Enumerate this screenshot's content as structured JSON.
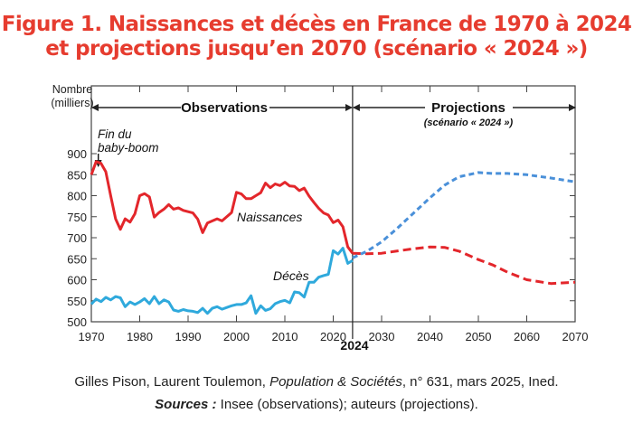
{
  "title": {
    "line1": "Figure 1. Naissances et décès en France de 1970 à 2024",
    "line2": "et projections jusqu’en 2070 (scénario « 2024 »)"
  },
  "footer": {
    "credit_authors": "Gilles Pison, Laurent Toulemon, ",
    "credit_journal": "Population & Sociétés",
    "credit_rest": ", n° 631, mars 2025, Ined.",
    "sources_label": "Sources :",
    "sources_text": " Insee (observations); auteurs (projections)."
  },
  "chart_data": {
    "type": "line",
    "ylabel": "Nombre\n(milliers)",
    "ylabel_lines": [
      "Nombre",
      "(milliers)"
    ],
    "xlim": [
      1970,
      2070
    ],
    "ylim": [
      500,
      900
    ],
    "xticks": [
      1970,
      1980,
      1990,
      2000,
      2010,
      2020,
      2030,
      2040,
      2050,
      2060,
      2070
    ],
    "yticks": [
      500,
      550,
      600,
      650,
      700,
      750,
      800,
      850,
      900
    ],
    "divider_year": 2024,
    "divider_label": "2024",
    "periods": {
      "observations": "Observations",
      "projections": "Projections",
      "projections_sub": "(scénario « 2024 »)"
    },
    "annotation": {
      "text_lines": [
        "Fin du",
        "baby-boom"
      ],
      "year": 1972
    },
    "colors": {
      "births": "#e3262b",
      "deaths": "#2fa9dc",
      "deaths_projection": "#4a90d9",
      "title": "#e63c2f"
    },
    "series": [
      {
        "name": "Naissances",
        "style": "solid",
        "color": "#e3262b",
        "x": [
          1970,
          1971,
          1972,
          1973,
          1974,
          1975,
          1976,
          1977,
          1978,
          1979,
          1980,
          1981,
          1982,
          1983,
          1984,
          1985,
          1986,
          1987,
          1988,
          1989,
          1990,
          1991,
          1992,
          1993,
          1994,
          1995,
          1996,
          1997,
          1998,
          1999,
          2000,
          2001,
          2002,
          2003,
          2004,
          2005,
          2006,
          2007,
          2008,
          2009,
          2010,
          2011,
          2012,
          2013,
          2014,
          2015,
          2016,
          2017,
          2018,
          2019,
          2020,
          2021,
          2022,
          2023,
          2024
        ],
        "y": [
          850,
          881,
          877,
          857,
          800,
          745,
          720,
          745,
          737,
          757,
          800,
          805,
          797,
          749,
          760,
          768,
          779,
          768,
          771,
          765,
          762,
          759,
          744,
          712,
          735,
          740,
          745,
          740,
          750,
          760,
          808,
          804,
          793,
          793,
          800,
          807,
          830,
          819,
          828,
          824,
          832,
          823,
          822,
          812,
          818,
          799,
          784,
          770,
          759,
          754,
          736,
          742,
          726,
          678,
          663
        ]
      },
      {
        "name": "Décès",
        "style": "solid",
        "color": "#2fa9dc",
        "x": [
          1970,
          1971,
          1972,
          1973,
          1974,
          1975,
          1976,
          1977,
          1978,
          1979,
          1980,
          1981,
          1982,
          1983,
          1984,
          1985,
          1986,
          1987,
          1988,
          1989,
          1990,
          1991,
          1992,
          1993,
          1994,
          1995,
          1996,
          1997,
          1998,
          1999,
          2000,
          2001,
          2002,
          2003,
          2004,
          2005,
          2006,
          2007,
          2008,
          2009,
          2010,
          2011,
          2012,
          2013,
          2014,
          2015,
          2016,
          2017,
          2018,
          2019,
          2020,
          2021,
          2022,
          2023,
          2024
        ],
        "y": [
          542,
          554,
          548,
          558,
          552,
          560,
          557,
          536,
          547,
          541,
          547,
          555,
          543,
          560,
          543,
          552,
          547,
          528,
          525,
          529,
          526,
          525,
          522,
          532,
          520,
          532,
          536,
          530,
          534,
          538,
          541,
          541,
          545,
          562,
          520,
          538,
          527,
          531,
          543,
          548,
          551,
          545,
          571,
          569,
          559,
          594,
          594,
          606,
          610,
          613,
          669,
          661,
          675,
          639,
          646
        ]
      },
      {
        "name": "Naissances",
        "style": "dashed",
        "color": "#e3262b",
        "x": [
          2024,
          2027,
          2030,
          2033,
          2036,
          2040,
          2043,
          2046,
          2050,
          2053,
          2056,
          2060,
          2065,
          2070
        ],
        "y": [
          663,
          662,
          663,
          668,
          673,
          678,
          677,
          668,
          648,
          635,
          618,
          600,
          591,
          594
        ]
      },
      {
        "name": "Décès",
        "style": "dashed",
        "color": "#4a90d9",
        "x": [
          2024,
          2027,
          2030,
          2033,
          2036,
          2040,
          2043,
          2046,
          2050,
          2053,
          2056,
          2060,
          2065,
          2070
        ],
        "y": [
          652,
          668,
          690,
          720,
          752,
          795,
          825,
          845,
          855,
          853,
          853,
          850,
          842,
          833
        ]
      }
    ],
    "series_labels": {
      "births": "Naissances",
      "deaths": "Décès"
    }
  }
}
